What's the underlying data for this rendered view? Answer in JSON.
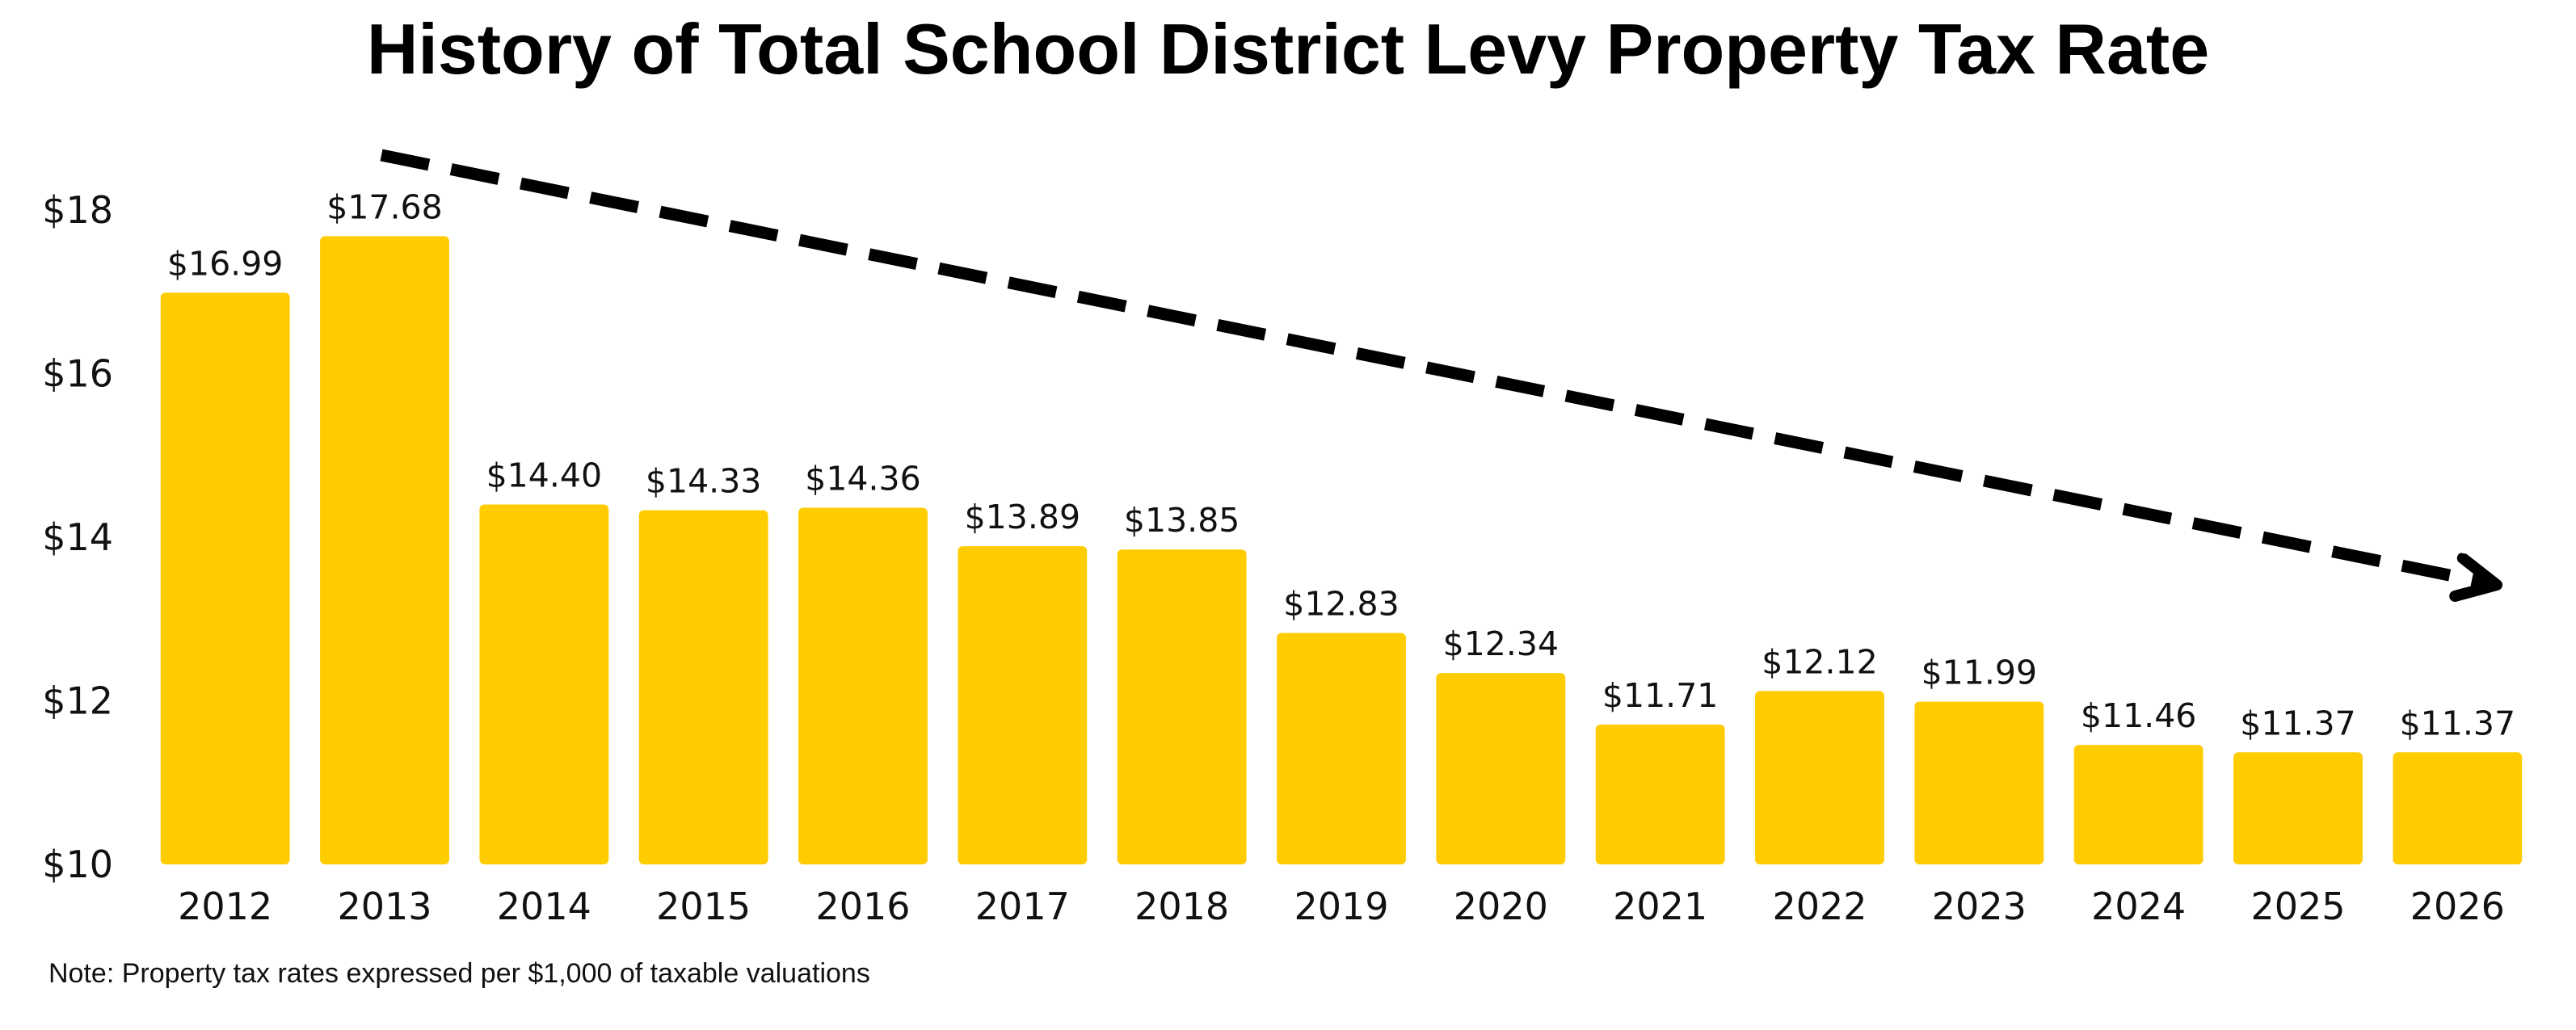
{
  "chart_data": {
    "type": "bar",
    "title": "History of Total School District Levy Property Tax Rate",
    "categories": [
      "2012",
      "2013",
      "2014",
      "2015",
      "2016",
      "2017",
      "2018",
      "2019",
      "2020",
      "2021",
      "2022",
      "2023",
      "2024",
      "2025",
      "2026"
    ],
    "values": [
      16.99,
      17.68,
      14.4,
      14.33,
      14.36,
      13.89,
      13.85,
      12.83,
      12.34,
      11.71,
      12.12,
      11.99,
      11.46,
      11.37,
      11.37
    ],
    "value_labels": [
      "$16.99",
      "$17.68",
      "$14.40",
      "$14.33",
      "$14.36",
      "$13.89",
      "$13.85",
      "$12.83",
      "$12.34",
      "$11.71",
      "$12.12",
      "$11.99",
      "$11.46",
      "$11.37",
      "$11.37"
    ],
    "ylim": [
      10,
      18
    ],
    "yticks": [
      10,
      12,
      14,
      16,
      18
    ],
    "ytick_labels": [
      "$10",
      "$12",
      "$14",
      "$16",
      "$18"
    ],
    "xlabel": "",
    "ylabel": "",
    "grid": false,
    "legend": "none",
    "bar_color": "#FFCC00",
    "annotation": {
      "type": "trend-arrow",
      "style": "dashed",
      "color": "#000000",
      "direction": "downward"
    },
    "note": "Note: Property tax rates expressed per $1,000 of taxable valuations"
  }
}
